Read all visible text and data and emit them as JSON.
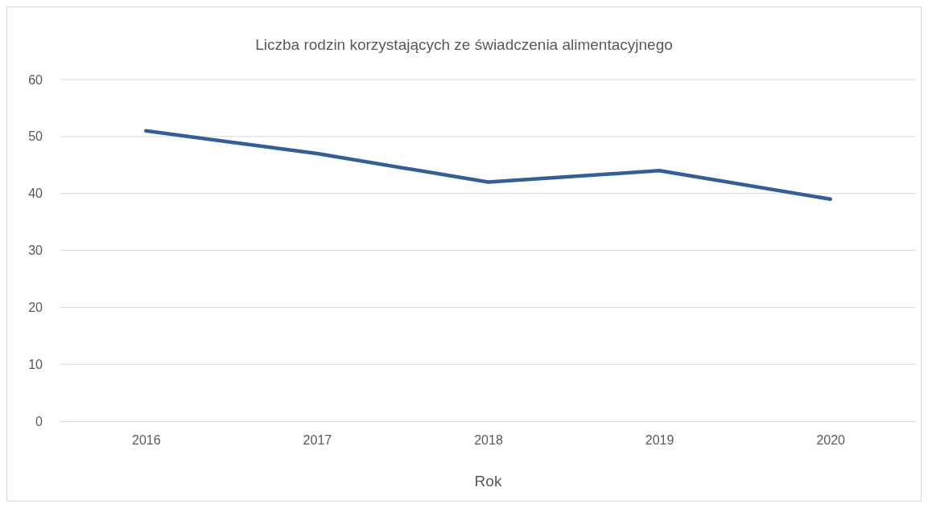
{
  "chart_data": {
    "type": "line",
    "title": "Liczba rodzin korzystających ze świadczenia alimentacyjnego",
    "xlabel": "Rok",
    "categories": [
      "2016",
      "2017",
      "2018",
      "2019",
      "2020"
    ],
    "series": [
      {
        "color": "#345e94",
        "values": [
          51,
          47,
          42,
          44,
          39
        ]
      }
    ],
    "ylim": [
      0,
      60
    ],
    "yticks": [
      0,
      10,
      20,
      30,
      40,
      50,
      60
    ],
    "grid": "y",
    "marker": "none",
    "line_style": "solid"
  }
}
